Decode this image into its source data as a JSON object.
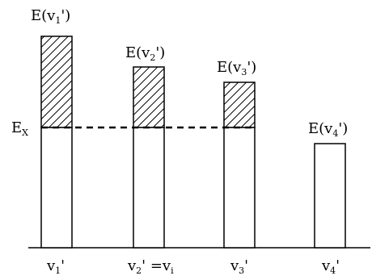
{
  "threshold": {
    "main": "E",
    "sub": "X"
  },
  "bars": [
    {
      "id": "v1",
      "energy_label": {
        "main": "E(v",
        "sub": "1",
        "tail": "')"
      },
      "base_label": {
        "main": "v",
        "sub": "1",
        "tail": "'"
      },
      "above_threshold": true
    },
    {
      "id": "v2",
      "energy_label": {
        "main": "E(v",
        "sub": "2",
        "tail": "')"
      },
      "base_label": {
        "main": "v",
        "sub": "2",
        "tail": "' =v",
        "sub2": "i"
      },
      "above_threshold": true
    },
    {
      "id": "v3",
      "energy_label": {
        "main": "E(v",
        "sub": "3",
        "tail": "')"
      },
      "base_label": {
        "main": "v",
        "sub": "3",
        "tail": "'"
      },
      "above_threshold": true
    },
    {
      "id": "v4",
      "energy_label": {
        "main": "E(v",
        "sub": "4",
        "tail": "')"
      },
      "base_label": {
        "main": "v",
        "sub": "4",
        "tail": "'"
      },
      "above_threshold": false
    }
  ],
  "colors": {
    "stroke": "#000000",
    "hatch": "#000000",
    "background": "#ffffff"
  }
}
